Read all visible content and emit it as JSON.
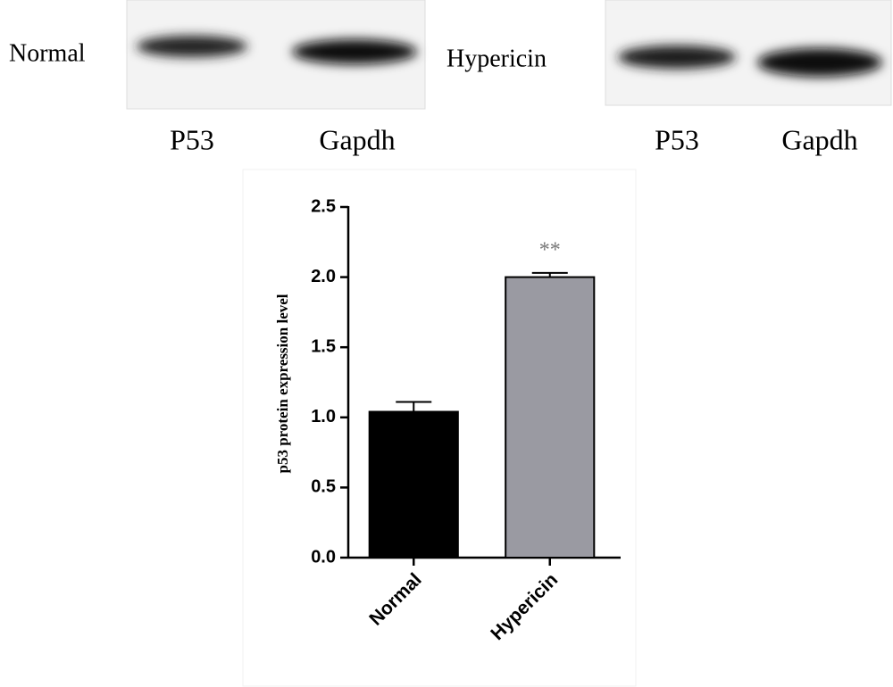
{
  "blots": [
    {
      "label": "Normal",
      "lanes": [
        "P53",
        "Gapdh"
      ]
    },
    {
      "label": "Hypericin",
      "lanes": [
        "P53",
        "Gapdh"
      ]
    }
  ],
  "chart_data": {
    "type": "bar",
    "ylabel": "p53 protein expression level",
    "categories": [
      "Normal",
      "Hypericin"
    ],
    "values": [
      1.04,
      2.0
    ],
    "errors": [
      0.07,
      0.03
    ],
    "colors": [
      "#000000",
      "#9a9aa2"
    ],
    "annotations": [
      null,
      "**"
    ],
    "ylim": [
      0,
      2.5
    ],
    "yticks": [
      {
        "value": 0,
        "label": "0.0"
      },
      {
        "value": 0.5,
        "label": "0.5"
      },
      {
        "value": 1,
        "label": "1.0"
      },
      {
        "value": 1.5,
        "label": "1.5"
      },
      {
        "value": 2,
        "label": "2.0"
      },
      {
        "value": 2.5,
        "label": "2.5"
      }
    ]
  }
}
